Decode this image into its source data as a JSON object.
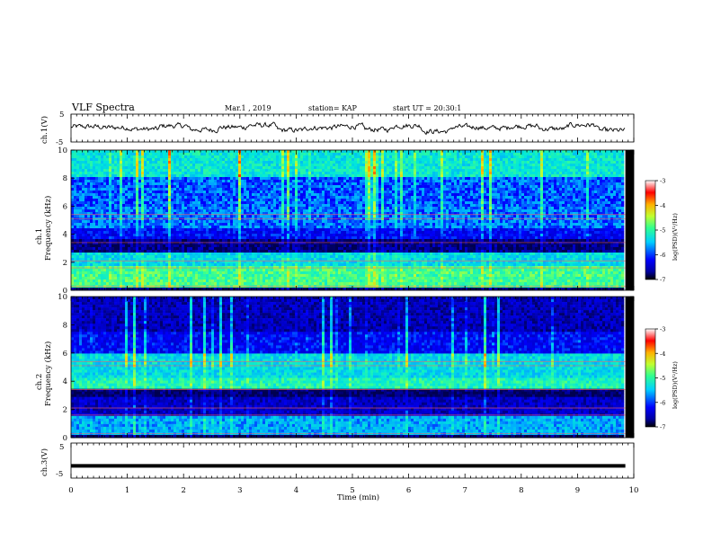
{
  "header": {
    "title": "VLF Spectra",
    "date": "Mar.1 , 2019",
    "station": "station= KAP",
    "start": "start UT = 20:30:1"
  },
  "colors": {
    "waveform": "#000000",
    "colormap": [
      "#000080",
      "#0000ff",
      "#00c8ff",
      "#40ffb0",
      "#c8ff40",
      "#ffc000",
      "#ff0000",
      "#ffffff"
    ]
  },
  "chart_data": [
    {
      "type": "line",
      "panel": "ch1-waveform",
      "ylabel": "ch.1(V)",
      "ylim": [
        -5,
        5
      ],
      "yticks": [
        "5",
        "-5"
      ],
      "xlim": [
        0,
        10
      ],
      "x_end": 9.85,
      "approx_mean": 0,
      "approx_amplitude": 1.5,
      "description_values": [
        0.5,
        0.2,
        -0.4,
        0.8,
        -0.6,
        0.3,
        1.0,
        -0.8,
        0.1,
        0.6,
        -0.5,
        0.9,
        -1.2,
        0.4,
        0.0,
        0.7,
        -0.3,
        1.1,
        -0.9,
        0.2
      ]
    },
    {
      "type": "heatmap",
      "panel": "ch1-spectrogram",
      "ylabel_line1": "ch.1",
      "ylabel_line2": "Frequency (kHz)",
      "ylim": [
        0,
        10
      ],
      "yticks": [
        "0",
        "2",
        "4",
        "6",
        "8",
        "10"
      ],
      "xlim": [
        0,
        10
      ],
      "colorbar": {
        "label": "log(PSD)(V²/Hz)",
        "range": [
          -7,
          -3
        ],
        "ticks": [
          "-3",
          "-4",
          "-5",
          "-6",
          "-7"
        ]
      }
    },
    {
      "type": "heatmap",
      "panel": "ch2-spectrogram",
      "ylabel_line1": "ch.2",
      "ylabel_line2": "Frequency (kHz)",
      "ylim": [
        0,
        10
      ],
      "yticks": [
        "0",
        "2",
        "4",
        "6",
        "8",
        "10"
      ],
      "xlim": [
        0,
        10
      ],
      "colorbar": {
        "label": "log(PSD)(V²/Hz)",
        "range": [
          -7,
          -3
        ],
        "ticks": [
          "-3",
          "-4",
          "-5",
          "-6",
          "-7"
        ]
      }
    },
    {
      "type": "line",
      "panel": "ch3-waveform",
      "ylabel": "ch.3(V)",
      "ylim": [
        -5,
        5
      ],
      "yticks": [
        "5",
        "-5"
      ],
      "xlim": [
        0,
        10
      ],
      "x_end": 9.85,
      "value": -1.5
    }
  ],
  "xaxis": {
    "label": "Time (min)",
    "ticks": [
      "0",
      "1",
      "2",
      "3",
      "4",
      "5",
      "6",
      "7",
      "8",
      "9",
      "10"
    ]
  }
}
